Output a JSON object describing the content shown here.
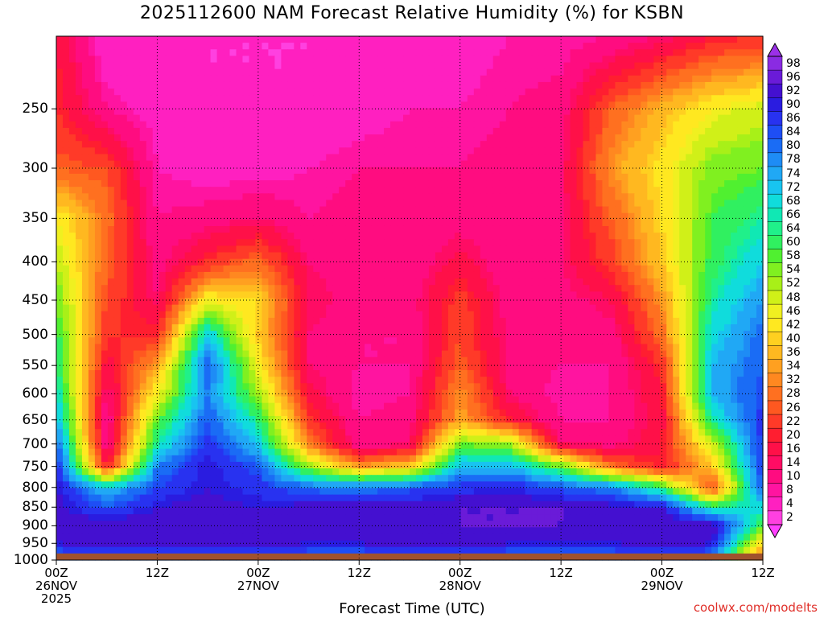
{
  "title": "2025112600 NAM Forecast Relative Humidity (%) for KSBN",
  "x_axis_title": "Forecast Time (UTC)",
  "credit": "coolwx.com/modelts",
  "x_ticks": [
    {
      "line1": "00Z",
      "line2": "26NOV",
      "line3": "2025"
    },
    {
      "line1": "12Z",
      "line2": "",
      "line3": ""
    },
    {
      "line1": "00Z",
      "line2": "27NOV",
      "line3": ""
    },
    {
      "line1": "12Z",
      "line2": "",
      "line3": ""
    },
    {
      "line1": "00Z",
      "line2": "28NOV",
      "line3": ""
    },
    {
      "line1": "12Z",
      "line2": "",
      "line3": ""
    },
    {
      "line1": "00Z",
      "line2": "29NOV",
      "line3": ""
    },
    {
      "line1": "12Z",
      "line2": "",
      "line3": ""
    }
  ],
  "colorbar": {
    "labels": [
      "98",
      "96",
      "92",
      "90",
      "86",
      "84",
      "80",
      "78",
      "74",
      "72",
      "68",
      "66",
      "64",
      "60",
      "58",
      "54",
      "52",
      "48",
      "46",
      "42",
      "40",
      "36",
      "34",
      "32",
      "28",
      "26",
      "22",
      "20",
      "16",
      "14",
      "10",
      "8",
      "4",
      "2"
    ],
    "colors": [
      "#8a2be2",
      "#6a1bd8",
      "#4410d0",
      "#2a1ce0",
      "#2832f0",
      "#1e4ef5",
      "#1a6cf5",
      "#1e8cf5",
      "#20a8f5",
      "#18c4f0",
      "#10dcdc",
      "#10e8b4",
      "#20f08a",
      "#30f060",
      "#50f030",
      "#80f020",
      "#a8f018",
      "#d0f018",
      "#f0f020",
      "#ffe820",
      "#ffd020",
      "#ffb820",
      "#ffa020",
      "#ff8820",
      "#ff7020",
      "#ff5820",
      "#ff3a28",
      "#ff1e30",
      "#ff1048",
      "#ff0c64",
      "#ff0c80",
      "#ff14a0",
      "#ff20c0",
      "#ff40e0"
    ]
  },
  "chart_data": {
    "type": "heatmap",
    "title": "2025112600 NAM Forecast Relative Humidity (%) for KSBN",
    "xlabel": "Forecast Time (UTC)",
    "ylabel": "",
    "x_hours": [
      0,
      12,
      24,
      36,
      48,
      60,
      72,
      84
    ],
    "x_tick_labels": [
      "00Z 26NOV 2025",
      "12Z",
      "00Z 27NOV",
      "12Z",
      "00Z 28NOV",
      "12Z",
      "00Z 29NOV",
      "12Z"
    ],
    "xlim": [
      0,
      84
    ],
    "y_pressure_levels": [
      250,
      300,
      350,
      400,
      450,
      500,
      550,
      600,
      650,
      700,
      750,
      800,
      850,
      900,
      950,
      1000
    ],
    "ylim": [
      200,
      1000
    ],
    "y_scale": "log-pressure",
    "grid": true,
    "units": "%",
    "colorbar_levels": [
      2,
      4,
      8,
      10,
      14,
      16,
      20,
      22,
      26,
      28,
      32,
      34,
      36,
      40,
      42,
      46,
      48,
      52,
      54,
      58,
      60,
      64,
      66,
      68,
      72,
      74,
      78,
      80,
      84,
      86,
      90,
      92,
      96,
      98
    ],
    "rh_grid": {
      "hours": [
        0,
        6,
        12,
        18,
        24,
        30,
        36,
        42,
        48,
        54,
        60,
        66,
        72,
        78,
        84
      ],
      "pressures": [
        200,
        250,
        300,
        350,
        400,
        450,
        500,
        550,
        600,
        650,
        700,
        750,
        800,
        850,
        900,
        950,
        990
      ],
      "values": [
        [
          20,
          4,
          4,
          4,
          4,
          4,
          4,
          6,
          6,
          8,
          8,
          10,
          14,
          20,
          22
        ],
        [
          22,
          10,
          6,
          4,
          4,
          4,
          6,
          8,
          8,
          10,
          12,
          28,
          38,
          46,
          50
        ],
        [
          28,
          26,
          8,
          6,
          6,
          8,
          10,
          10,
          10,
          12,
          14,
          34,
          44,
          56,
          58
        ],
        [
          46,
          30,
          10,
          12,
          14,
          10,
          12,
          10,
          12,
          10,
          14,
          28,
          42,
          60,
          66
        ],
        [
          52,
          28,
          12,
          22,
          30,
          14,
          12,
          10,
          18,
          10,
          14,
          24,
          40,
          62,
          72
        ],
        [
          58,
          26,
          14,
          46,
          42,
          16,
          12,
          12,
          24,
          12,
          12,
          16,
          34,
          66,
          78
        ],
        [
          62,
          22,
          22,
          72,
          40,
          14,
          10,
          10,
          26,
          12,
          10,
          12,
          30,
          70,
          82
        ],
        [
          66,
          18,
          36,
          84,
          46,
          14,
          10,
          10,
          28,
          12,
          10,
          10,
          22,
          74,
          84
        ],
        [
          70,
          12,
          46,
          80,
          54,
          18,
          8,
          10,
          34,
          14,
          8,
          10,
          20,
          74,
          86
        ],
        [
          76,
          10,
          58,
          84,
          64,
          24,
          10,
          12,
          36,
          20,
          10,
          10,
          18,
          66,
          88
        ],
        [
          84,
          10,
          66,
          88,
          72,
          32,
          10,
          14,
          58,
          54,
          14,
          12,
          20,
          50,
          88
        ],
        [
          90,
          20,
          80,
          92,
          84,
          54,
          34,
          40,
          74,
          74,
          58,
          30,
          20,
          40,
          88
        ],
        [
          92,
          72,
          86,
          92,
          88,
          82,
          80,
          84,
          88,
          90,
          84,
          80,
          62,
          24,
          86
        ],
        [
          94,
          84,
          92,
          94,
          92,
          94,
          94,
          94,
          96,
          96,
          96,
          94,
          92,
          64,
          70
        ],
        [
          94,
          96,
          96,
          96,
          96,
          96,
          96,
          96,
          96,
          96,
          96,
          96,
          96,
          96,
          60
        ],
        [
          92,
          94,
          94,
          94,
          94,
          92,
          92,
          94,
          94,
          92,
          92,
          92,
          94,
          92,
          40
        ],
        [
          80,
          80,
          80,
          80,
          80,
          80,
          80,
          80,
          80,
          80,
          80,
          80,
          80,
          80,
          30
        ]
      ]
    },
    "surface_pressure_approx": 980
  }
}
